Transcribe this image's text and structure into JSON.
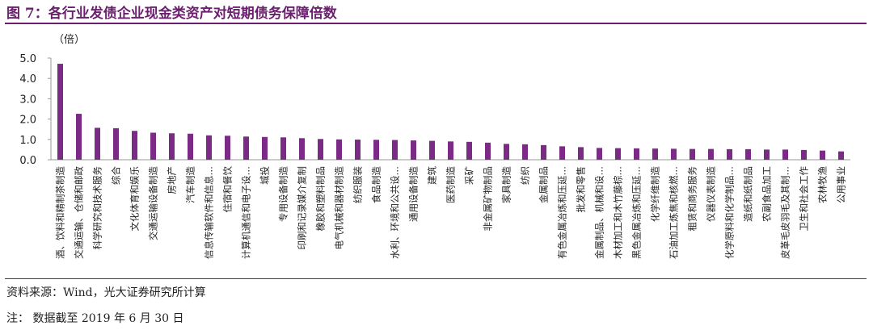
{
  "figure": {
    "title": "图 7：各行业发债企业现金类资产对短期债务保障倍数",
    "source": "资料来源：Wind，光大证券研究所计算",
    "note": "注：  数据截至 2019 年 6 月 30 日"
  },
  "colors": {
    "bar": "#7b2a86",
    "title": "#6b1f6e",
    "axis": "#999999"
  },
  "chart_data": {
    "type": "bar",
    "ylabel": "（倍）",
    "ylim": [
      0,
      5
    ],
    "yticks": [
      "0.0",
      "1.0",
      "2.0",
      "3.0",
      "4.0",
      "5.0"
    ],
    "grid": false,
    "categories": [
      "酒、饮料和精制茶制造",
      "交通运输、仓储和邮政",
      "科学研究和技术服务",
      "综合",
      "文化体育和娱乐",
      "交通运输设备制造",
      "房地产",
      "汽车制造",
      "信息传输软件和信息…",
      "住宿和餐饮",
      "计算机通信和电子设…",
      "城投",
      "专用设备制造",
      "印刷和记录媒介复制",
      "橡胶和塑料制品",
      "电气机械和器材制造",
      "纺织服装",
      "食品制造",
      "水利、环境和公共设…",
      "通用设备制造",
      "建筑",
      "医药制造",
      "采矿",
      "非金属矿物制品",
      "家具制造",
      "纺织",
      "金属制品",
      "有色金属冶炼和压延…",
      "批发和零售",
      "金属制品、机械和设…",
      "木材加工和木竹藤棕…",
      "黑色金属冶炼和压延…",
      "化学纤维制造",
      "石油加工炼焦和核燃…",
      "租赁和商务服务",
      "仪器仪表制造",
      "化学原料和化学制品…",
      "造纸和纸制品",
      "农副食品加工",
      "皮革毛皮羽毛及其制…",
      "卫生和社会工作",
      "农林牧渔",
      "公用事业"
    ],
    "values": [
      4.72,
      2.26,
      1.57,
      1.55,
      1.42,
      1.33,
      1.3,
      1.28,
      1.2,
      1.18,
      1.14,
      1.12,
      1.1,
      1.06,
      1.02,
      1.0,
      0.99,
      0.98,
      0.97,
      0.95,
      0.93,
      0.9,
      0.88,
      0.84,
      0.78,
      0.76,
      0.72,
      0.66,
      0.62,
      0.58,
      0.57,
      0.56,
      0.55,
      0.54,
      0.53,
      0.53,
      0.52,
      0.52,
      0.5,
      0.5,
      0.48,
      0.45,
      0.41
    ]
  }
}
